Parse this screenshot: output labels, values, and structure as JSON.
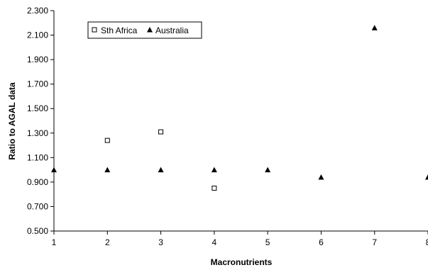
{
  "chart_data": {
    "type": "scatter",
    "title": "",
    "xlabel": "Macronutrients",
    "ylabel": "Ratio to AGAL data",
    "xlim": [
      1,
      8
    ],
    "ylim": [
      0.5,
      2.3
    ],
    "xticks": [
      "1",
      "2",
      "3",
      "4",
      "5",
      "6",
      "7",
      "8"
    ],
    "yticks": [
      "0.500",
      "0.700",
      "0.900",
      "1.100",
      "1.300",
      "1.500",
      "1.700",
      "1.900",
      "2.100",
      "2.300"
    ],
    "grid": false,
    "legend_position": "top-left",
    "series": [
      {
        "name": "Sth Africa",
        "marker": "open-square",
        "color": "#000000",
        "points": [
          [
            2,
            1.24
          ],
          [
            3,
            1.31
          ],
          [
            4,
            0.85
          ]
        ]
      },
      {
        "name": "Australia",
        "marker": "filled-triangle",
        "color": "#000000",
        "points": [
          [
            1,
            1.0
          ],
          [
            2,
            1.0
          ],
          [
            3,
            1.0
          ],
          [
            4,
            1.0
          ],
          [
            5,
            1.0
          ],
          [
            6,
            0.94
          ],
          [
            7,
            2.16
          ],
          [
            8,
            0.94
          ]
        ]
      }
    ]
  }
}
